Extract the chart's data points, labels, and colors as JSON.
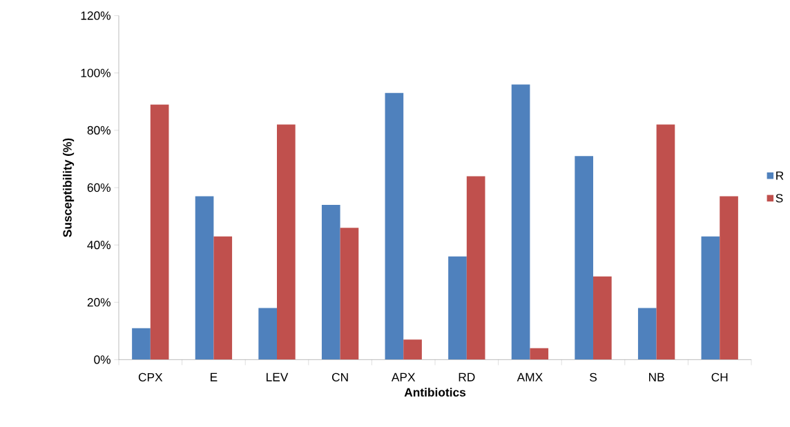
{
  "chart_data": {
    "type": "bar",
    "xlabel": "Antibiotics",
    "ylabel": "Susceptibility (%)",
    "categories": [
      "CPX",
      "E",
      "LEV",
      "CN",
      "APX",
      "RD",
      "AMX",
      "S",
      "NB",
      "CH"
    ],
    "series": [
      {
        "name": "R",
        "color": "#4f81bd",
        "values": [
          11,
          57,
          18,
          54,
          93,
          36,
          96,
          71,
          18,
          43
        ]
      },
      {
        "name": "S",
        "color": "#c0504d",
        "values": [
          89,
          43,
          82,
          46,
          7,
          64,
          4,
          29,
          82,
          57
        ]
      }
    ],
    "ylim": [
      0,
      120
    ],
    "yticks": [
      {
        "value": 0,
        "label": "0%"
      },
      {
        "value": 20,
        "label": "20%"
      },
      {
        "value": 40,
        "label": "40%"
      },
      {
        "value": 60,
        "label": "60%"
      },
      {
        "value": 80,
        "label": "80%"
      },
      {
        "value": 100,
        "label": "100%"
      },
      {
        "value": 120,
        "label": "120%"
      }
    ],
    "grid": false,
    "legend": "right"
  }
}
